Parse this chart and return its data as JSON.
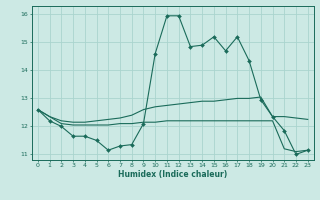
{
  "title": "",
  "xlabel": "Humidex (Indice chaleur)",
  "ylabel": "",
  "bg_color": "#cce9e4",
  "line_color": "#1a6b5a",
  "grid_color": "#aad4ce",
  "xlim": [
    -0.5,
    23.5
  ],
  "ylim": [
    10.8,
    16.3
  ],
  "xticks": [
    0,
    1,
    2,
    3,
    4,
    5,
    6,
    7,
    8,
    9,
    10,
    11,
    12,
    13,
    14,
    15,
    16,
    17,
    18,
    19,
    20,
    21,
    22,
    23
  ],
  "yticks": [
    11,
    12,
    13,
    14,
    15,
    16
  ],
  "x": [
    0,
    1,
    2,
    3,
    4,
    5,
    6,
    7,
    8,
    9,
    10,
    11,
    12,
    13,
    14,
    15,
    16,
    17,
    18,
    19,
    20,
    21,
    22,
    23
  ],
  "y_main": [
    12.6,
    12.2,
    12.0,
    11.65,
    11.65,
    11.5,
    11.15,
    11.3,
    11.35,
    12.1,
    14.6,
    15.95,
    15.95,
    14.85,
    14.9,
    15.2,
    14.7,
    15.2,
    14.35,
    12.95,
    12.35,
    11.85,
    11.0,
    11.15
  ],
  "y_upper": [
    12.6,
    12.35,
    12.2,
    12.15,
    12.15,
    12.2,
    12.25,
    12.3,
    12.4,
    12.6,
    12.7,
    12.75,
    12.8,
    12.85,
    12.9,
    12.9,
    12.95,
    13.0,
    13.0,
    13.05,
    12.35,
    12.35,
    12.3,
    12.25
  ],
  "y_lower": [
    12.6,
    12.35,
    12.1,
    12.05,
    12.05,
    12.05,
    12.05,
    12.1,
    12.1,
    12.15,
    12.15,
    12.2,
    12.2,
    12.2,
    12.2,
    12.2,
    12.2,
    12.2,
    12.2,
    12.2,
    12.2,
    11.2,
    11.1,
    11.15
  ]
}
